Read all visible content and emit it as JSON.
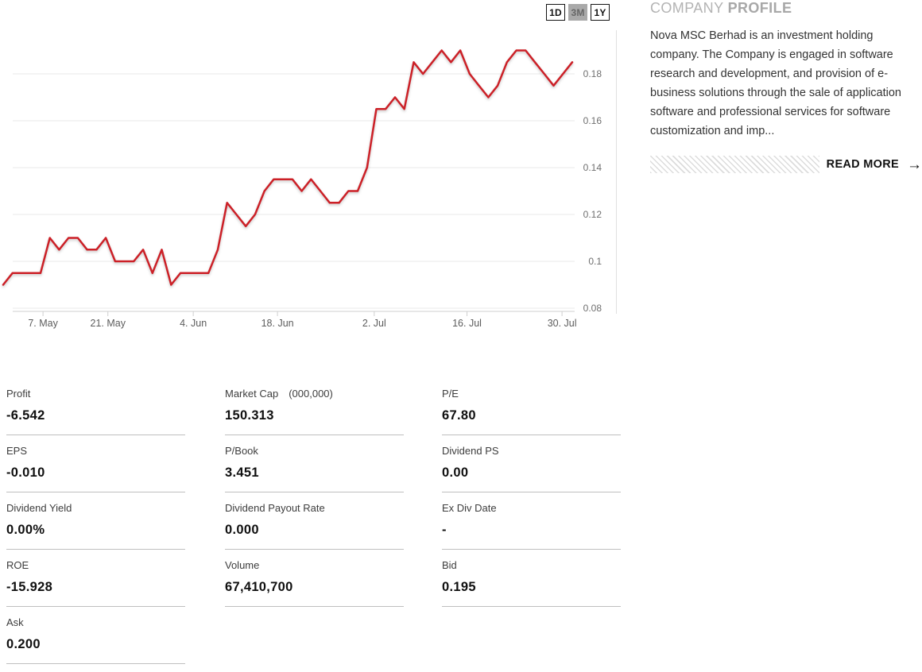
{
  "range_buttons": [
    {
      "label": "1D",
      "active": false
    },
    {
      "label": "3M",
      "active": true
    },
    {
      "label": "1Y",
      "active": false
    }
  ],
  "chart_data": {
    "type": "line",
    "title": "",
    "series_name": "price",
    "line_color": "#cc2027",
    "grid": true,
    "legend_position": "none",
    "ylim": [
      0.08,
      0.195
    ],
    "y_ticks": [
      {
        "value": 0.08,
        "label": "0.08"
      },
      {
        "value": 0.1,
        "label": "0.1"
      },
      {
        "value": 0.12,
        "label": "0.12"
      },
      {
        "value": 0.14,
        "label": "0.14"
      },
      {
        "value": 0.16,
        "label": "0.16"
      },
      {
        "value": 0.18,
        "label": "0.18"
      }
    ],
    "x_ticks": [
      {
        "label": "7. May",
        "pos": 0.07
      },
      {
        "label": "21. May",
        "pos": 0.184
      },
      {
        "label": "4. Jun",
        "pos": 0.334
      },
      {
        "label": "18. Jun",
        "pos": 0.482
      },
      {
        "label": "2. Jul",
        "pos": 0.652
      },
      {
        "label": "16. Jul",
        "pos": 0.815
      },
      {
        "label": "30. Jul",
        "pos": 0.982
      }
    ],
    "values": [
      0.09,
      0.095,
      0.095,
      0.095,
      0.095,
      0.11,
      0.105,
      0.11,
      0.11,
      0.105,
      0.105,
      0.11,
      0.1,
      0.1,
      0.1,
      0.105,
      0.095,
      0.105,
      0.09,
      0.095,
      0.095,
      0.095,
      0.095,
      0.105,
      0.125,
      0.12,
      0.115,
      0.12,
      0.13,
      0.135,
      0.135,
      0.135,
      0.13,
      0.135,
      0.13,
      0.125,
      0.125,
      0.13,
      0.13,
      0.14,
      0.165,
      0.165,
      0.17,
      0.165,
      0.185,
      0.18,
      0.185,
      0.19,
      0.185,
      0.19,
      0.18,
      0.175,
      0.17,
      0.175,
      0.185,
      0.19,
      0.19,
      0.185,
      0.18,
      0.175,
      0.18,
      0.185
    ]
  },
  "profile": {
    "title_light": "COMPANY",
    "title_bold": "PROFILE",
    "body": "Nova MSC Berhad is an investment holding company. The Company is engaged in software research and development, and provision of e-business solutions through the sale of application software and professional services for software customization and imp...",
    "read_more_label": "READ MORE",
    "arrow": "→"
  },
  "stats": {
    "columns": [
      [
        {
          "label": "Profit",
          "unit": "",
          "value": "-6.542"
        },
        {
          "label": "EPS",
          "unit": "",
          "value": "-0.010"
        },
        {
          "label": "Dividend Yield",
          "unit": "",
          "value": "0.00%"
        },
        {
          "label": "ROE",
          "unit": "",
          "value": "-15.928"
        },
        {
          "label": "Ask",
          "unit": "",
          "value": "0.200"
        }
      ],
      [
        {
          "label": "Market Cap",
          "unit": "(000,000)",
          "value": "150.313"
        },
        {
          "label": "P/Book",
          "unit": "",
          "value": "3.451"
        },
        {
          "label": "Dividend Payout Rate",
          "unit": "",
          "value": "0.000"
        },
        {
          "label": "Volume",
          "unit": "",
          "value": "67,410,700"
        }
      ],
      [
        {
          "label": "P/E",
          "unit": "",
          "value": "67.80"
        },
        {
          "label": "Dividend PS",
          "unit": "",
          "value": "0.00"
        },
        {
          "label": "Ex Div Date",
          "unit": "",
          "value": "-"
        },
        {
          "label": "Bid",
          "unit": "",
          "value": "0.195"
        }
      ]
    ]
  },
  "colors": {
    "line_red": "#cc2027",
    "grid_line": "#e8e8e8",
    "axis_line": "#cfcfcf",
    "axis_text": "#6f6f6f",
    "heading_gray": "#b3b3b3",
    "active_button_bg": "#a9a9a9",
    "separator": "#bfbfbf"
  }
}
